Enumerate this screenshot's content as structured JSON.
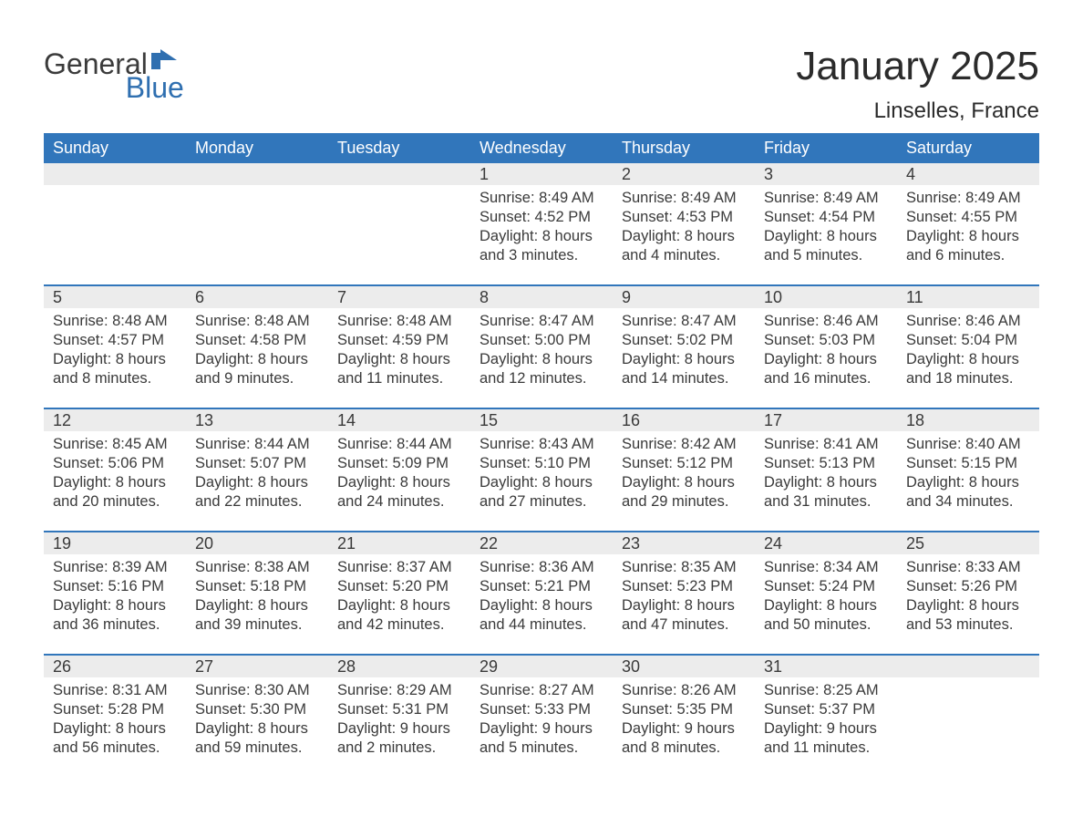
{
  "brand": {
    "word1": "General",
    "word2": "Blue",
    "flag_color": "#2f6fb0"
  },
  "header": {
    "title": "January 2025",
    "location": "Linselles, France"
  },
  "style": {
    "header_bg": "#3176bb",
    "header_text": "#ffffff",
    "daynum_bg": "#ececec",
    "row_border": "#3176bb",
    "text_color": "#3a3a3a",
    "page_bg": "#ffffff",
    "title_fontsize": 44,
    "location_fontsize": 24,
    "dayheader_fontsize": 18,
    "body_fontsize": 16.5
  },
  "day_headers": [
    "Sunday",
    "Monday",
    "Tuesday",
    "Wednesday",
    "Thursday",
    "Friday",
    "Saturday"
  ],
  "weeks": [
    [
      null,
      null,
      null,
      {
        "n": "1",
        "sunrise": "8:49 AM",
        "sunset": "4:52 PM",
        "daylight": "8 hours and 3 minutes."
      },
      {
        "n": "2",
        "sunrise": "8:49 AM",
        "sunset": "4:53 PM",
        "daylight": "8 hours and 4 minutes."
      },
      {
        "n": "3",
        "sunrise": "8:49 AM",
        "sunset": "4:54 PM",
        "daylight": "8 hours and 5 minutes."
      },
      {
        "n": "4",
        "sunrise": "8:49 AM",
        "sunset": "4:55 PM",
        "daylight": "8 hours and 6 minutes."
      }
    ],
    [
      {
        "n": "5",
        "sunrise": "8:48 AM",
        "sunset": "4:57 PM",
        "daylight": "8 hours and 8 minutes."
      },
      {
        "n": "6",
        "sunrise": "8:48 AM",
        "sunset": "4:58 PM",
        "daylight": "8 hours and 9 minutes."
      },
      {
        "n": "7",
        "sunrise": "8:48 AM",
        "sunset": "4:59 PM",
        "daylight": "8 hours and 11 minutes."
      },
      {
        "n": "8",
        "sunrise": "8:47 AM",
        "sunset": "5:00 PM",
        "daylight": "8 hours and 12 minutes."
      },
      {
        "n": "9",
        "sunrise": "8:47 AM",
        "sunset": "5:02 PM",
        "daylight": "8 hours and 14 minutes."
      },
      {
        "n": "10",
        "sunrise": "8:46 AM",
        "sunset": "5:03 PM",
        "daylight": "8 hours and 16 minutes."
      },
      {
        "n": "11",
        "sunrise": "8:46 AM",
        "sunset": "5:04 PM",
        "daylight": "8 hours and 18 minutes."
      }
    ],
    [
      {
        "n": "12",
        "sunrise": "8:45 AM",
        "sunset": "5:06 PM",
        "daylight": "8 hours and 20 minutes."
      },
      {
        "n": "13",
        "sunrise": "8:44 AM",
        "sunset": "5:07 PM",
        "daylight": "8 hours and 22 minutes."
      },
      {
        "n": "14",
        "sunrise": "8:44 AM",
        "sunset": "5:09 PM",
        "daylight": "8 hours and 24 minutes."
      },
      {
        "n": "15",
        "sunrise": "8:43 AM",
        "sunset": "5:10 PM",
        "daylight": "8 hours and 27 minutes."
      },
      {
        "n": "16",
        "sunrise": "8:42 AM",
        "sunset": "5:12 PM",
        "daylight": "8 hours and 29 minutes."
      },
      {
        "n": "17",
        "sunrise": "8:41 AM",
        "sunset": "5:13 PM",
        "daylight": "8 hours and 31 minutes."
      },
      {
        "n": "18",
        "sunrise": "8:40 AM",
        "sunset": "5:15 PM",
        "daylight": "8 hours and 34 minutes."
      }
    ],
    [
      {
        "n": "19",
        "sunrise": "8:39 AM",
        "sunset": "5:16 PM",
        "daylight": "8 hours and 36 minutes."
      },
      {
        "n": "20",
        "sunrise": "8:38 AM",
        "sunset": "5:18 PM",
        "daylight": "8 hours and 39 minutes."
      },
      {
        "n": "21",
        "sunrise": "8:37 AM",
        "sunset": "5:20 PM",
        "daylight": "8 hours and 42 minutes."
      },
      {
        "n": "22",
        "sunrise": "8:36 AM",
        "sunset": "5:21 PM",
        "daylight": "8 hours and 44 minutes."
      },
      {
        "n": "23",
        "sunrise": "8:35 AM",
        "sunset": "5:23 PM",
        "daylight": "8 hours and 47 minutes."
      },
      {
        "n": "24",
        "sunrise": "8:34 AM",
        "sunset": "5:24 PM",
        "daylight": "8 hours and 50 minutes."
      },
      {
        "n": "25",
        "sunrise": "8:33 AM",
        "sunset": "5:26 PM",
        "daylight": "8 hours and 53 minutes."
      }
    ],
    [
      {
        "n": "26",
        "sunrise": "8:31 AM",
        "sunset": "5:28 PM",
        "daylight": "8 hours and 56 minutes."
      },
      {
        "n": "27",
        "sunrise": "8:30 AM",
        "sunset": "5:30 PM",
        "daylight": "8 hours and 59 minutes."
      },
      {
        "n": "28",
        "sunrise": "8:29 AM",
        "sunset": "5:31 PM",
        "daylight": "9 hours and 2 minutes."
      },
      {
        "n": "29",
        "sunrise": "8:27 AM",
        "sunset": "5:33 PM",
        "daylight": "9 hours and 5 minutes."
      },
      {
        "n": "30",
        "sunrise": "8:26 AM",
        "sunset": "5:35 PM",
        "daylight": "9 hours and 8 minutes."
      },
      {
        "n": "31",
        "sunrise": "8:25 AM",
        "sunset": "5:37 PM",
        "daylight": "9 hours and 11 minutes."
      },
      null
    ]
  ],
  "labels": {
    "sunrise": "Sunrise: ",
    "sunset": "Sunset: ",
    "daylight": "Daylight: "
  }
}
